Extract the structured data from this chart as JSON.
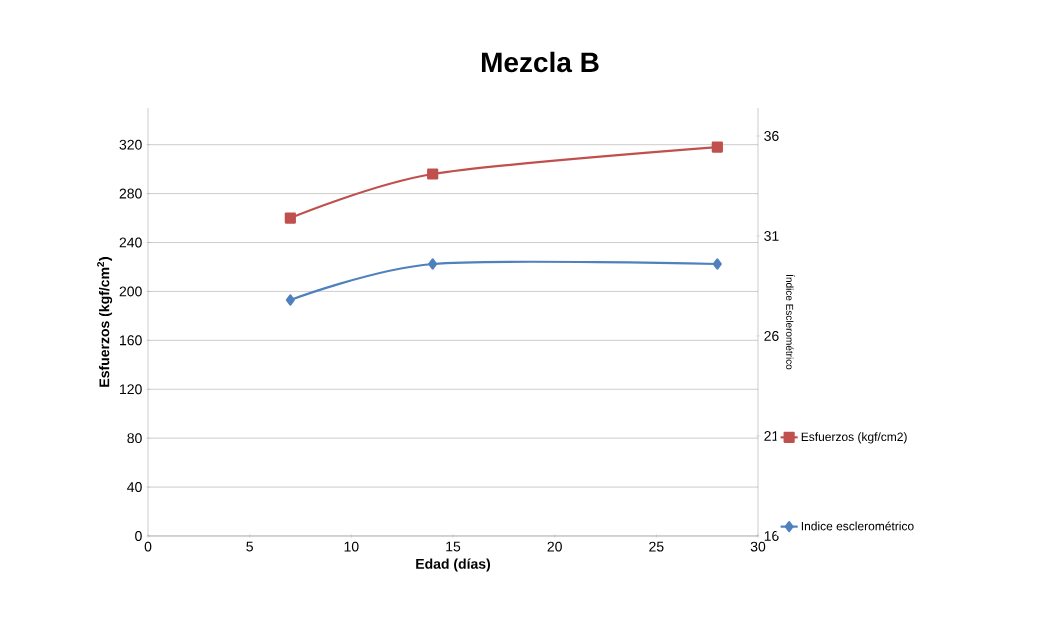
{
  "chart_data": {
    "type": "line",
    "title": "Mezcla B",
    "xlabel": "Edad (días)",
    "ylabel": "Esfuerzos (kgf/cm$^{2}$)",
    "y2label": "Índice Esclerométrico",
    "x": [
      7,
      14,
      28
    ],
    "series": [
      {
        "name": "Esfuerzos (kgf/cm2)",
        "color": "#c0504d",
        "values": [
          260,
          296,
          318
        ],
        "marker": "square",
        "axis": "y"
      },
      {
        "name": "Indice esclerométrico",
        "color": "#4f81bd",
        "values": [
          27.8,
          29.6,
          29.6
        ],
        "marker": "diamond",
        "axis": "y2"
      }
    ],
    "xlim": [
      0,
      30
    ],
    "xticks": [
      0,
      5,
      10,
      15,
      20,
      25,
      30
    ],
    "ylim": [
      0,
      350
    ],
    "yticks": [
      0,
      40,
      80,
      120,
      160,
      200,
      240,
      280,
      320
    ],
    "y2lim": [
      16,
      37.4
    ],
    "y2ticks": [
      16,
      21,
      26,
      31,
      36
    ],
    "grid": "y",
    "legend": "right",
    "line_style": "solid"
  }
}
